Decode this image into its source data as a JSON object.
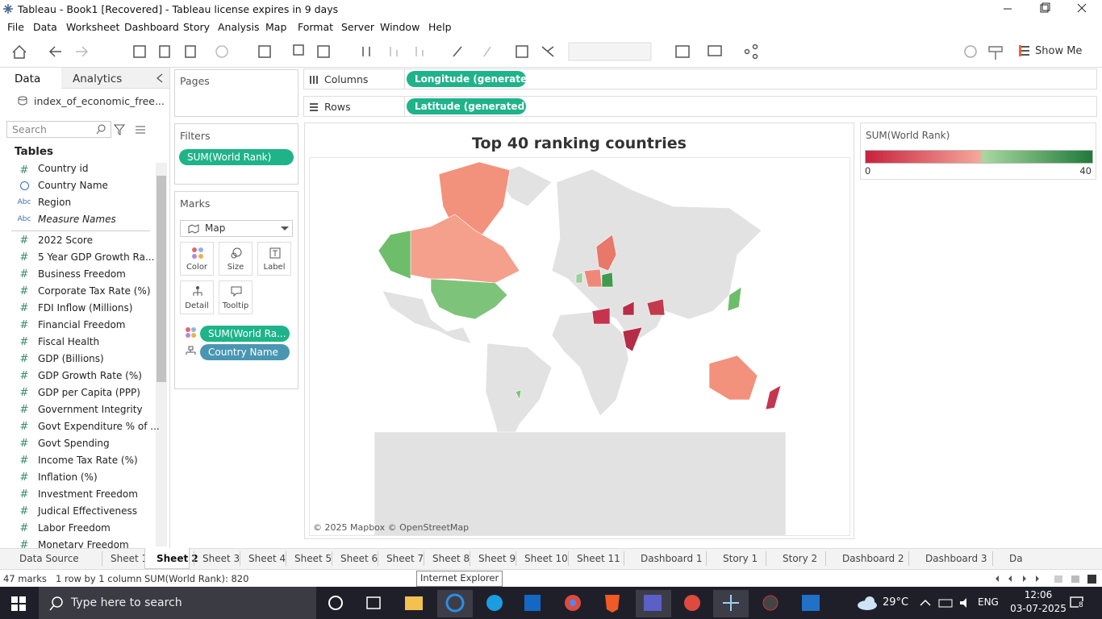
{
  "window": {
    "title": "Tableau - Book1 [Recovered] - Tableau license expires in 9 days"
  },
  "menu": [
    "File",
    "Data",
    "Worksheet",
    "Dashboard",
    "Story",
    "Analysis",
    "Map",
    "Format",
    "Server",
    "Window",
    "Help"
  ],
  "toolbar": {
    "show_me": "Show Me"
  },
  "data_pane": {
    "tabs": [
      "Data",
      "Analytics"
    ],
    "data_source": "index_of_economic_free...",
    "search_placeholder": "Search",
    "tables_heading": "Tables",
    "dimensions": [
      {
        "icon": "#",
        "name": "Country id"
      },
      {
        "name": "Country Name"
      },
      {
        "icon": "Abc",
        "name": "Region"
      },
      {
        "icon": "Abc",
        "name": "Measure Names"
      }
    ],
    "measure_icon": "#",
    "measures": [
      "2022 Score",
      "5 Year GDP Growth Ra...",
      "Business Freedom",
      "Corporate Tax Rate (%)",
      "FDI Inflow (Millions)",
      "Financial Freedom",
      "Fiscal Health",
      "GDP (Billions)",
      "GDP Growth Rate (%)",
      "GDP per Capita (PPP)",
      "Government Integrity",
      "Govt Expenditure % of ...",
      "Govt Spending",
      "Income Tax Rate (%)",
      "Inflation (%)",
      "Investment Freedom",
      "Judical Effectiveness",
      "Labor Freedom",
      "Monetary Freedom"
    ]
  },
  "pages": {
    "label": "Pages"
  },
  "filters": {
    "label": "Filters",
    "pills": [
      "SUM(World Rank)"
    ]
  },
  "marks": {
    "label": "Marks",
    "mark_type": "Map",
    "buttons": [
      "Color",
      "Size",
      "Label",
      "Detail",
      "Tooltip"
    ],
    "pills": [
      "SUM(World Ra...",
      "Country Name"
    ]
  },
  "shelves": {
    "columns": {
      "label": "Columns",
      "pill": "Longitude (generated)"
    },
    "rows": {
      "label": "Rows",
      "pill": "Latitude (generated)"
    }
  },
  "view": {
    "title": "Top 40 ranking countries",
    "attribution": "© 2025 Mapbox © OpenStreetMap"
  },
  "legend": {
    "title": "SUM(World Rank)",
    "min": 0,
    "max": 40
  },
  "sheet_tabs": [
    "Data Source",
    "Sheet 1",
    "Sheet 2",
    "Sheet 3",
    "Sheet 4",
    "Sheet 5",
    "Sheet 6",
    "Sheet 7",
    "Sheet 8",
    "Sheet 9",
    "Sheet 10",
    "Sheet 11",
    "Dashboard 1",
    "Story 1",
    "Story 2",
    "Dashboard 2",
    "Dashboard 3",
    "Da"
  ],
  "status_bar": {
    "marks": "47 marks",
    "dimensions": "1 row by 1 column",
    "summary": "SUM(World Rank): 820"
  },
  "tooltip": "Internet Explorer",
  "taskbar": {
    "search": "Type here to search",
    "weather": "29°C",
    "language": "ENG",
    "time": "12:06",
    "date": "03-07-2025",
    "notifications": "8"
  }
}
